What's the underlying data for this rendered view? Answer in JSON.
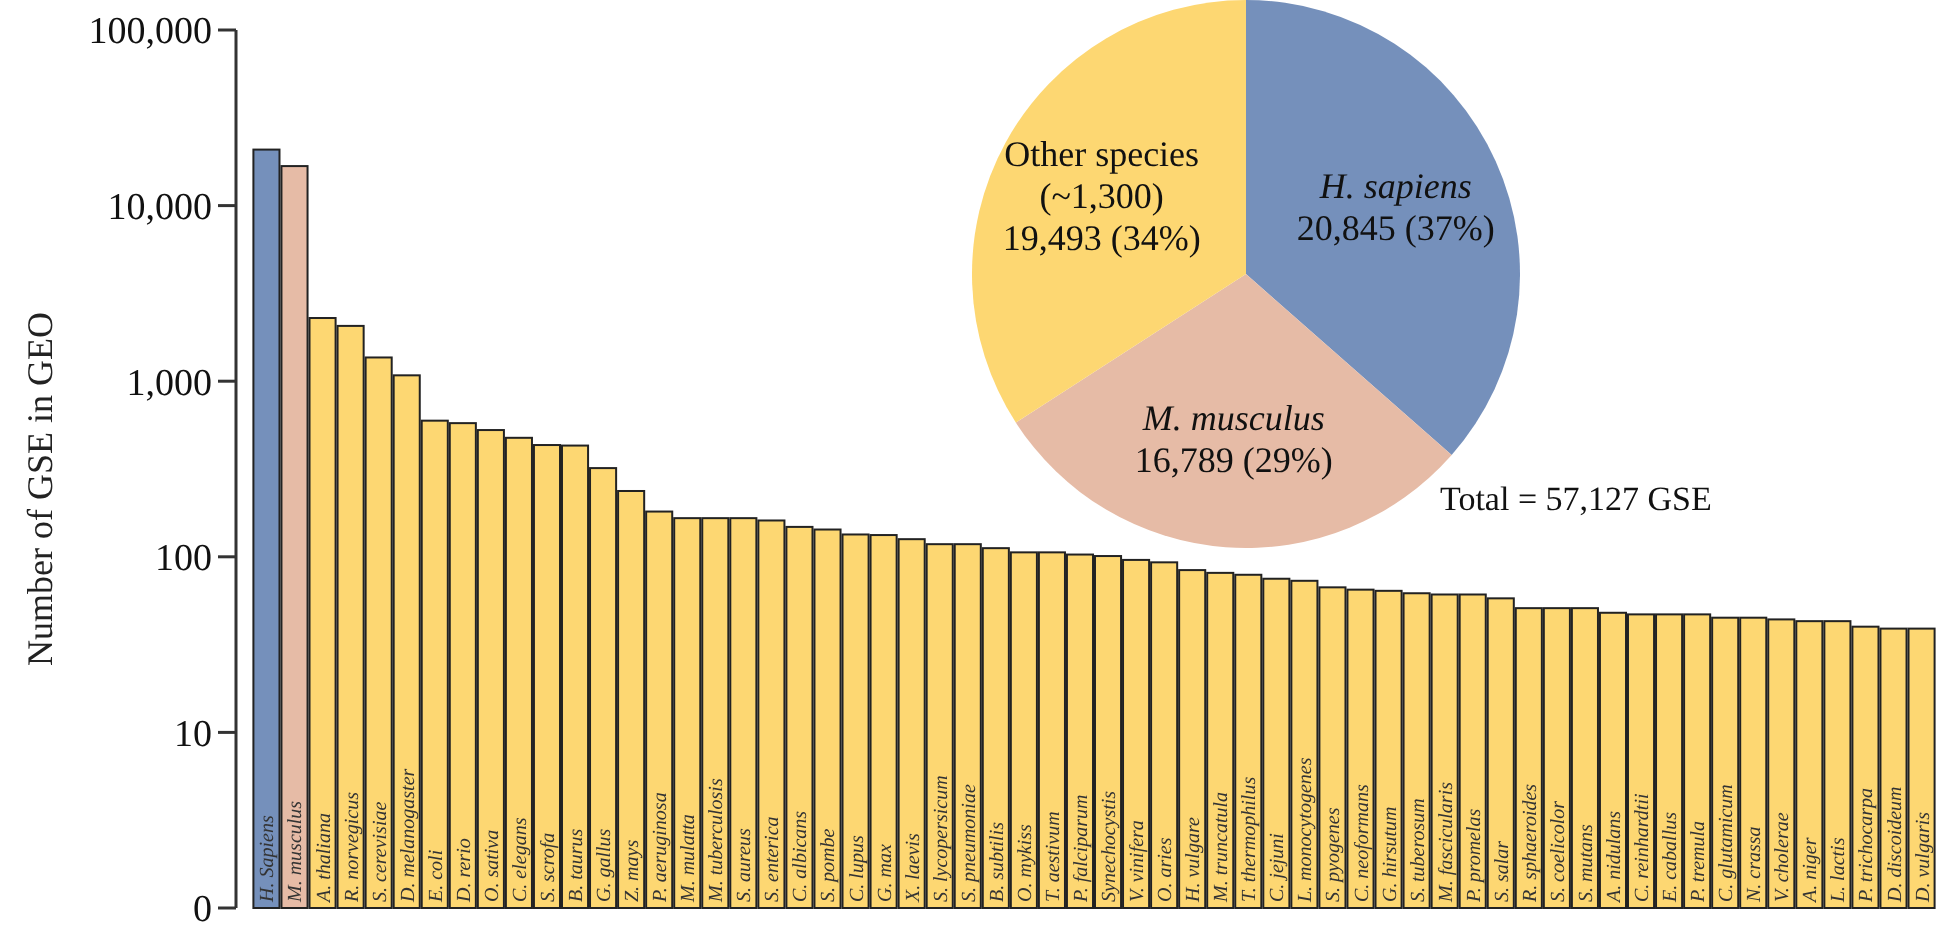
{
  "chart_data": [
    {
      "type": "bar",
      "ylabel": "Number of GSE in GEO",
      "log": true,
      "ylim": [
        0,
        100000
      ],
      "yticks": [
        0,
        10,
        100,
        {
          "value": 1000,
          "label": "1,000"
        },
        {
          "value": 10000,
          "label": "10,000"
        },
        {
          "value": 100000,
          "label": "100,000"
        }
      ],
      "categories": [
        "H. Sapiens",
        "M. musculus",
        "A. thaliana",
        "R. norvegicus",
        "S. cerevisiae",
        "D. melanogaster",
        "E. coli",
        "D. rerio",
        "O. sativa",
        "C. elegans",
        "S. scrofa",
        "B. taurus",
        "G. gallus",
        "Z. mays",
        "P. aeruginosa",
        "M. mulatta",
        "M. tuberculosis",
        "S. aureus",
        "S. enterica",
        "C. albicans",
        "S. pombe",
        "C. lupus",
        "G. max",
        "X. laevis",
        "S. lycopersicum",
        "S. pneumoniae",
        "B. subtilis",
        "O. mykiss",
        "T. aestivum",
        "P. falciparum",
        "Synechocystis",
        "V. vinifera",
        "O. aries",
        "H. vulgare",
        "M. truncatula",
        "T. thermophilus",
        "C. jejuni",
        "L. monocytogenes",
        "S. pyogenes",
        "C. neoformans",
        "G. hirsutum",
        "S. tuberosum",
        "M. fascicularis",
        "P. promelas",
        "S. salar",
        "R. sphaeroides",
        "S. coelicolor",
        "S. mutans",
        "A. nidulans",
        "C. reinhardtii",
        "E. caballus",
        "P. tremula",
        "C. glutamicum",
        "N. crassa",
        "V. cholerae",
        "A. niger",
        "L. lactis",
        "P. trichocarpa",
        "D. discoideum",
        "D. vulgaris"
      ],
      "values": [
        20845,
        16789,
        2290,
        2065,
        1365,
        1080,
        596,
        577,
        527,
        476,
        433,
        430,
        320,
        237,
        181,
        166,
        166,
        166,
        161,
        148,
        143,
        134,
        133,
        126,
        118,
        118,
        112,
        106,
        106,
        103,
        101,
        96,
        93,
        84,
        81,
        79,
        75,
        73,
        67,
        65,
        64,
        62,
        61,
        61,
        58,
        51,
        51,
        51,
        48,
        47,
        47,
        47,
        45,
        45,
        44,
        43,
        43,
        40,
        39,
        39
      ],
      "colors": [
        "#7590bb",
        "#e6bba6",
        "#fdd772",
        "#fdd772",
        "#fdd772",
        "#fdd772",
        "#fdd772",
        "#fdd772",
        "#fdd772",
        "#fdd772",
        "#fdd772",
        "#fdd772",
        "#fdd772",
        "#fdd772",
        "#fdd772",
        "#fdd772",
        "#fdd772",
        "#fdd772",
        "#fdd772",
        "#fdd772",
        "#fdd772",
        "#fdd772",
        "#fdd772",
        "#fdd772",
        "#fdd772",
        "#fdd772",
        "#fdd772",
        "#fdd772",
        "#fdd772",
        "#fdd772",
        "#fdd772",
        "#fdd772",
        "#fdd772",
        "#fdd772",
        "#fdd772",
        "#fdd772",
        "#fdd772",
        "#fdd772",
        "#fdd772",
        "#fdd772",
        "#fdd772",
        "#fdd772",
        "#fdd772",
        "#fdd772",
        "#fdd772",
        "#fdd772",
        "#fdd772",
        "#fdd772",
        "#fdd772",
        "#fdd772",
        "#fdd772",
        "#fdd772",
        "#fdd772",
        "#fdd772",
        "#fdd772",
        "#fdd772",
        "#fdd772",
        "#fdd772",
        "#fdd772",
        "#fdd772"
      ]
    },
    {
      "type": "pie",
      "categories": [
        "H. sapiens",
        "M. musculus",
        "Other species\n(~1,300)"
      ],
      "values": [
        20845,
        16789,
        19493
      ],
      "value_labels": [
        "20,845 (37%)",
        "16,789 (29%)",
        "19,493 (34%)"
      ],
      "colors": [
        "#7590bb",
        "#e6bba6",
        "#fdd772"
      ],
      "annotations": [
        "Total = 57,127 GSE"
      ]
    }
  ]
}
